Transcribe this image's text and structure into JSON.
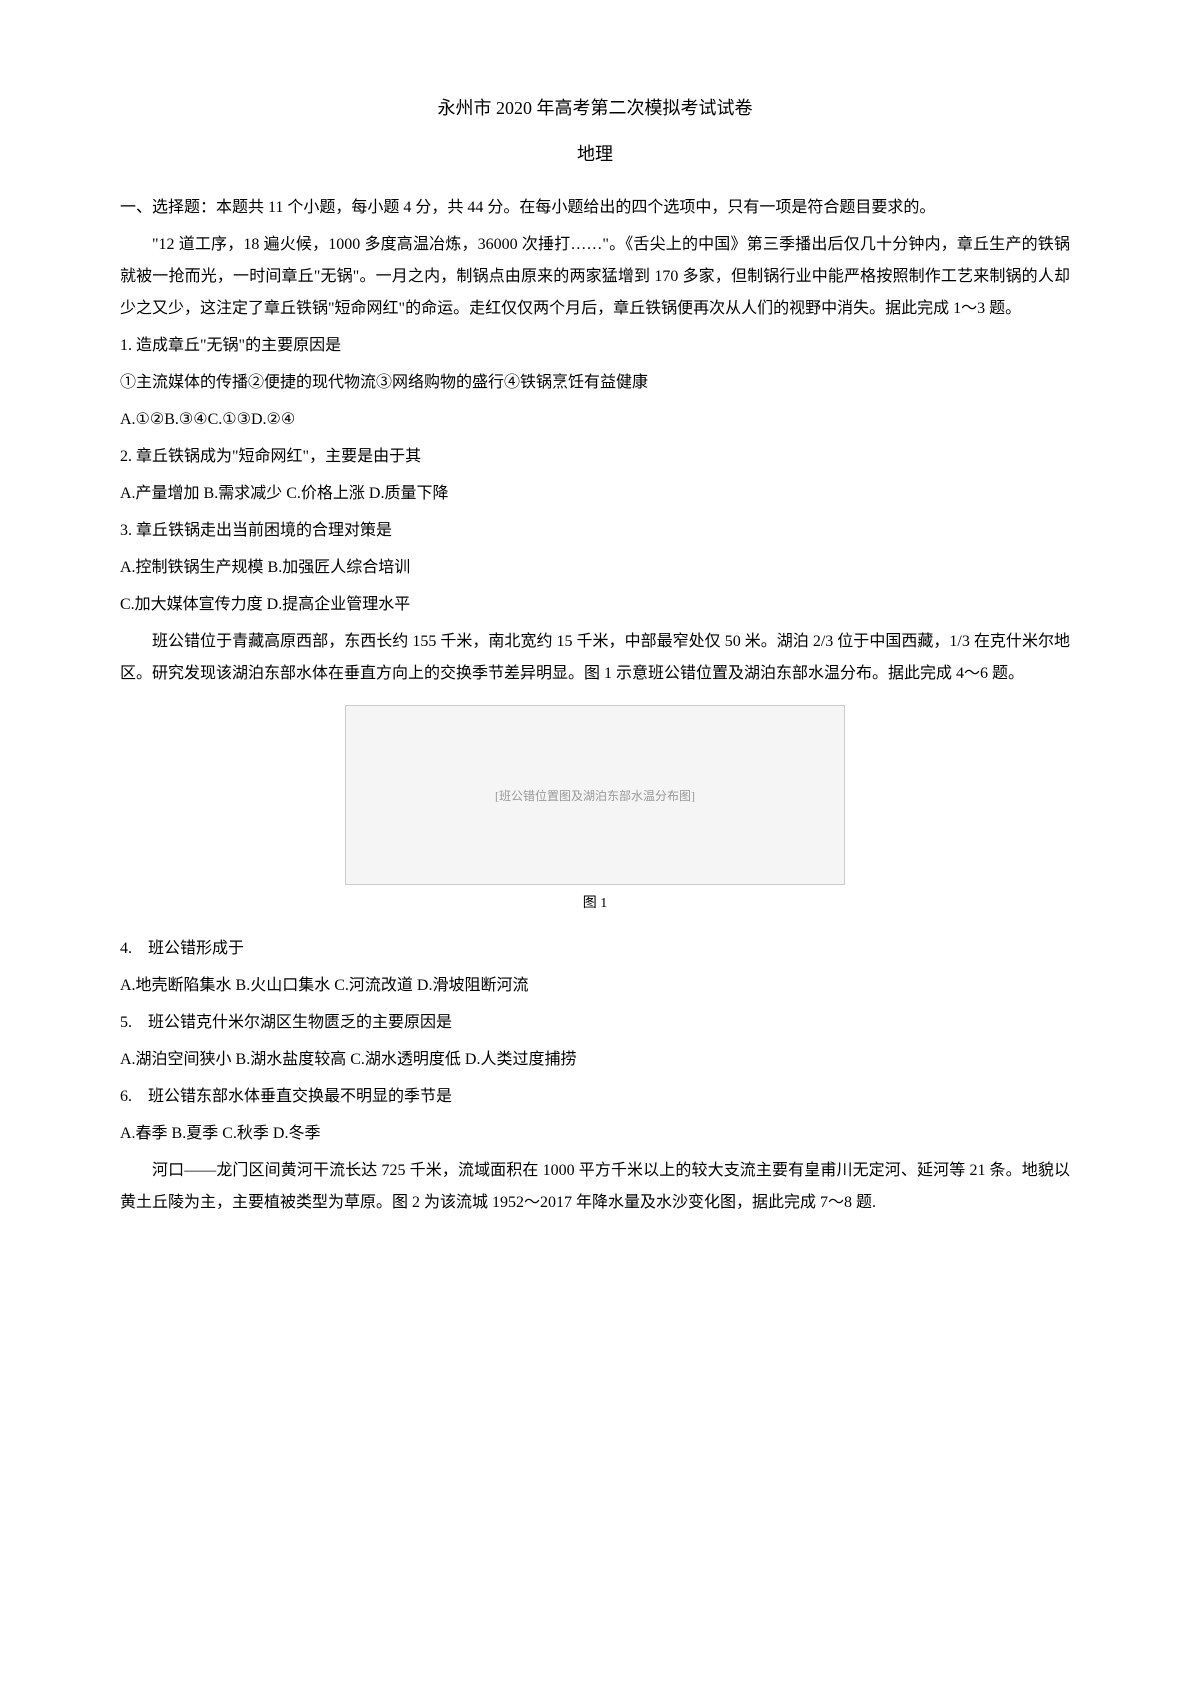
{
  "title": "永州市 2020 年高考第二次模拟考试试卷",
  "subtitle": "地理",
  "section_heading": "一、选择题：本题共 11 个小题，每小题 4 分，共 44 分。在每小题给出的四个选项中，只有一项是符合题目要求的。",
  "passage1": "\"12 道工序，18 遍火候，1000 多度高温冶炼，36000 次捶打……\"。《舌尖上的中国》第三季播出后仅几十分钟内，章丘生产的铁锅就被一抢而光，一时间章丘\"无锅\"。一月之内，制锅点由原来的两家猛增到 170 多家，但制锅行业中能严格按照制作工艺来制锅的人却少之又少，这注定了章丘铁锅\"短命网红\"的命运。走红仅仅两个月后，章丘铁锅便再次从人们的视野中消失。据此完成 1〜3 题。",
  "q1": {
    "stem": "1. 造成章丘\"无锅\"的主要原因是",
    "sub": "①主流媒体的传播②便捷的现代物流③网络购物的盛行④铁锅烹饪有益健康",
    "options": "A.①②B.③④C.①③D.②④"
  },
  "q2": {
    "stem": "2. 章丘铁锅成为\"短命网红\"，主要是由于其",
    "options": "A.产量增加 B.需求减少 C.价格上涨 D.质量下降"
  },
  "q3": {
    "stem": "3. 章丘铁锅走出当前困境的合理对策是",
    "options_line1": "A.控制铁锅生产规模 B.加强匠人综合培训",
    "options_line2": "C.加大媒体宣传力度 D.提高企业管理水平"
  },
  "passage2": "班公错位于青藏高原西部，东西长约 155 千米，南北宽约 15 千米，中部最窄处仅 50 米。湖泊 2/3 位于中国西藏，1/3 在克什米尔地区。研究发现该湖泊东部水体在垂直方向上的交换季节差异明显。图 1 示意班公错位置及湖泊东部水温分布。据此完成 4〜6 题。",
  "figure1": {
    "caption": "图 1",
    "placeholder": "[班公错位置图及湖泊东部水温分布图]"
  },
  "q4": {
    "stem": "4.　班公错形成于",
    "options": "A.地壳断陷集水 B.火山口集水 C.河流改道 D.滑坡阻断河流"
  },
  "q5": {
    "stem": "5.　班公错克什米尔湖区生物匮乏的主要原因是",
    "options": "A.湖泊空间狭小 B.湖水盐度较高 C.湖水透明度低 D.人类过度捕捞"
  },
  "q6": {
    "stem": "6.　班公错东部水体垂直交换最不明显的季节是",
    "options": "A.春季 B.夏季 C.秋季 D.冬季"
  },
  "passage3": "河口——龙门区间黄河干流长达 725 千米，流域面积在 1000 平方千米以上的较大支流主要有皇甫川无定河、延河等 21 条。地貌以黄土丘陵为主，主要植被类型为草原。图 2 为该流城 1952〜2017 年降水量及水沙变化图，据此完成 7〜8 题."
}
